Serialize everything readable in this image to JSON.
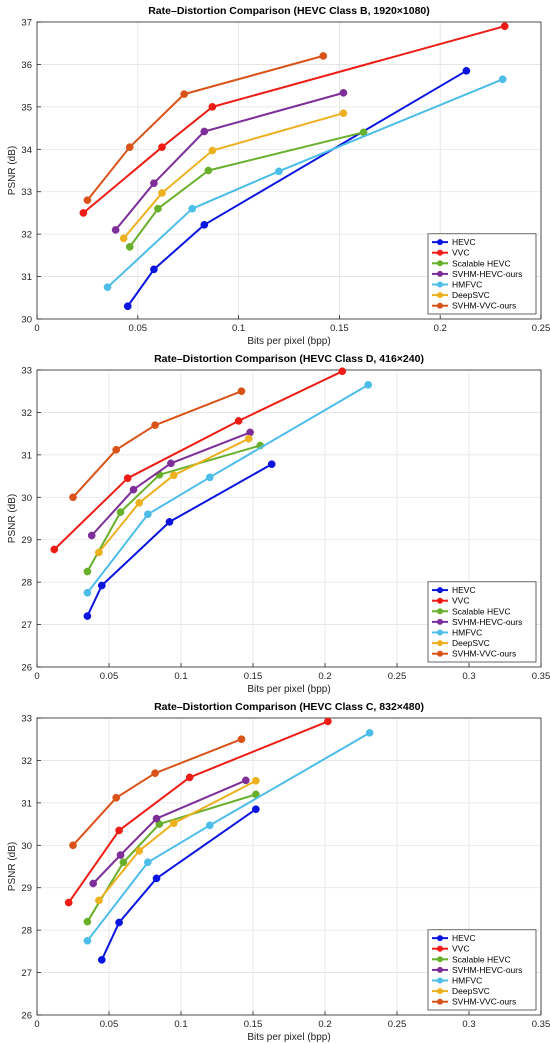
{
  "chart_data": [
    {
      "type": "line",
      "title": "Rate–Distortion Comparison (HEVC Class B, 1920×1080)",
      "xlabel": "Bits per pixel (bpp)",
      "ylabel": "PSNR (dB)",
      "xlim": [
        0,
        0.25
      ],
      "ylim": [
        30,
        37
      ],
      "xticks": [
        0,
        0.05,
        0.1,
        0.15,
        0.2,
        0.25
      ],
      "xtick_labels": [
        "0",
        "0.05",
        "0.1",
        "0.15",
        "0.2",
        "0.25"
      ],
      "yticks": [
        30,
        31,
        32,
        33,
        34,
        35,
        36,
        37
      ],
      "ytick_labels": [
        "30",
        "31",
        "32",
        "33",
        "34",
        "35",
        "36",
        "37"
      ],
      "grid": true,
      "legend_position": "bottom-right",
      "series": [
        {
          "name": "HEVC",
          "color": "#0a14e0",
          "x": [
            0.045,
            0.058,
            0.083,
            0.213
          ],
          "y": [
            30.3,
            31.17,
            32.22,
            35.85
          ]
        },
        {
          "name": "VVC",
          "color": "#ee1c14",
          "x": [
            0.023,
            0.062,
            0.087,
            0.232
          ],
          "y": [
            32.5,
            34.05,
            35.0,
            36.9
          ]
        },
        {
          "name": "Scalable HEVC",
          "color": "#68b02c",
          "x": [
            0.046,
            0.06,
            0.085,
            0.162
          ],
          "y": [
            31.7,
            32.6,
            33.5,
            34.4
          ]
        },
        {
          "name": "SVHM-HEVC-ours",
          "color": "#7e2e98",
          "x": [
            0.039,
            0.058,
            0.083,
            0.152
          ],
          "y": [
            32.1,
            33.2,
            34.42,
            35.33
          ]
        },
        {
          "name": "HMFVC",
          "color": "#4cbde8",
          "x": [
            0.035,
            0.077,
            0.12,
            0.231
          ],
          "y": [
            30.75,
            32.6,
            33.48,
            35.65
          ]
        },
        {
          "name": "DeepSVC",
          "color": "#edb120",
          "x": [
            0.043,
            0.062,
            0.087,
            0.152
          ],
          "y": [
            31.9,
            32.97,
            33.97,
            34.85
          ]
        },
        {
          "name": "SVHM-VVC-ours",
          "color": "#d95319",
          "x": [
            0.025,
            0.046,
            0.073,
            0.142
          ],
          "y": [
            32.8,
            34.05,
            35.3,
            36.2
          ]
        }
      ]
    },
    {
      "type": "line",
      "title": "Rate–Distortion Comparison (HEVC Class D, 416×240)",
      "xlabel": "Bits per pixel (bpp)",
      "ylabel": "PSNR (dB)",
      "xlim": [
        0,
        0.35
      ],
      "ylim": [
        26,
        33
      ],
      "xticks": [
        0,
        0.05,
        0.1,
        0.15,
        0.2,
        0.25,
        0.3,
        0.35
      ],
      "xtick_labels": [
        "0",
        "0.05",
        "0.1",
        "0.15",
        "0.2",
        "0.25",
        "0.3",
        "0.35"
      ],
      "yticks": [
        26,
        27,
        28,
        29,
        30,
        31,
        32,
        33
      ],
      "ytick_labels": [
        "26",
        "27",
        "28",
        "29",
        "30",
        "31",
        "32",
        "33"
      ],
      "grid": true,
      "legend_position": "bottom-right",
      "series": [
        {
          "name": "HEVC",
          "color": "#0a14e0",
          "x": [
            0.035,
            0.045,
            0.092,
            0.163
          ],
          "y": [
            27.2,
            27.92,
            29.42,
            30.78
          ]
        },
        {
          "name": "VVC",
          "color": "#ee1c14",
          "x": [
            0.012,
            0.063,
            0.14,
            0.212
          ],
          "y": [
            28.77,
            30.45,
            31.8,
            32.97
          ]
        },
        {
          "name": "Scalable HEVC",
          "color": "#68b02c",
          "x": [
            0.035,
            0.058,
            0.085,
            0.155
          ],
          "y": [
            28.25,
            29.65,
            30.53,
            31.22
          ]
        },
        {
          "name": "SVHM-HEVC-ours",
          "color": "#7e2e98",
          "x": [
            0.038,
            0.067,
            0.093,
            0.148
          ],
          "y": [
            29.1,
            30.18,
            30.8,
            31.53
          ]
        },
        {
          "name": "HMFVC",
          "color": "#4cbde8",
          "x": [
            0.035,
            0.077,
            0.12,
            0.23
          ],
          "y": [
            27.75,
            29.6,
            30.47,
            32.65
          ]
        },
        {
          "name": "DeepSVC",
          "color": "#edb120",
          "x": [
            0.043,
            0.071,
            0.095,
            0.147
          ],
          "y": [
            28.7,
            29.87,
            30.52,
            31.38
          ]
        },
        {
          "name": "SVHM-VVC-ours",
          "color": "#d95319",
          "x": [
            0.025,
            0.055,
            0.082,
            0.142
          ],
          "y": [
            30.0,
            31.12,
            31.7,
            32.5
          ]
        }
      ]
    },
    {
      "type": "line",
      "title": "Rate–Distortion Comparison (HEVC Class C, 832×480)",
      "xlabel": "Bits per pixel (bpp)",
      "ylabel": "PSNR (dB)",
      "xlim": [
        0,
        0.35
      ],
      "ylim": [
        26,
        33
      ],
      "xticks": [
        0,
        0.05,
        0.1,
        0.15,
        0.2,
        0.25,
        0.3,
        0.35
      ],
      "xtick_labels": [
        "0",
        "0.05",
        "0.1",
        "0.15",
        "0.2",
        "0.25",
        "0.3",
        "0.35"
      ],
      "yticks": [
        26,
        27,
        28,
        29,
        30,
        31,
        32,
        33
      ],
      "ytick_labels": [
        "26",
        "27",
        "28",
        "29",
        "30",
        "31",
        "32",
        "33"
      ],
      "grid": true,
      "legend_position": "bottom-right",
      "series": [
        {
          "name": "HEVC",
          "color": "#0a14e0",
          "x": [
            0.045,
            0.057,
            0.083,
            0.152
          ],
          "y": [
            27.3,
            28.18,
            29.22,
            30.85
          ]
        },
        {
          "name": "VVC",
          "color": "#ee1c14",
          "x": [
            0.022,
            0.057,
            0.106,
            0.202
          ],
          "y": [
            28.65,
            30.35,
            31.6,
            32.92
          ]
        },
        {
          "name": "Scalable HEVC",
          "color": "#68b02c",
          "x": [
            0.035,
            0.06,
            0.085,
            0.152
          ],
          "y": [
            28.2,
            29.6,
            30.5,
            31.2
          ]
        },
        {
          "name": "SVHM-HEVC-ours",
          "color": "#7e2e98",
          "x": [
            0.039,
            0.058,
            0.083,
            0.145
          ],
          "y": [
            29.1,
            29.77,
            30.63,
            31.53
          ]
        },
        {
          "name": "HMFVC",
          "color": "#4cbde8",
          "x": [
            0.035,
            0.077,
            0.12,
            0.231
          ],
          "y": [
            27.75,
            29.6,
            30.47,
            32.65
          ]
        },
        {
          "name": "DeepSVC",
          "color": "#edb120",
          "x": [
            0.043,
            0.071,
            0.095,
            0.152
          ],
          "y": [
            28.7,
            29.87,
            30.52,
            31.52
          ]
        },
        {
          "name": "SVHM-VVC-ours",
          "color": "#d95319",
          "x": [
            0.025,
            0.055,
            0.082,
            0.142
          ],
          "y": [
            30.0,
            31.12,
            31.7,
            32.5
          ]
        }
      ]
    }
  ]
}
